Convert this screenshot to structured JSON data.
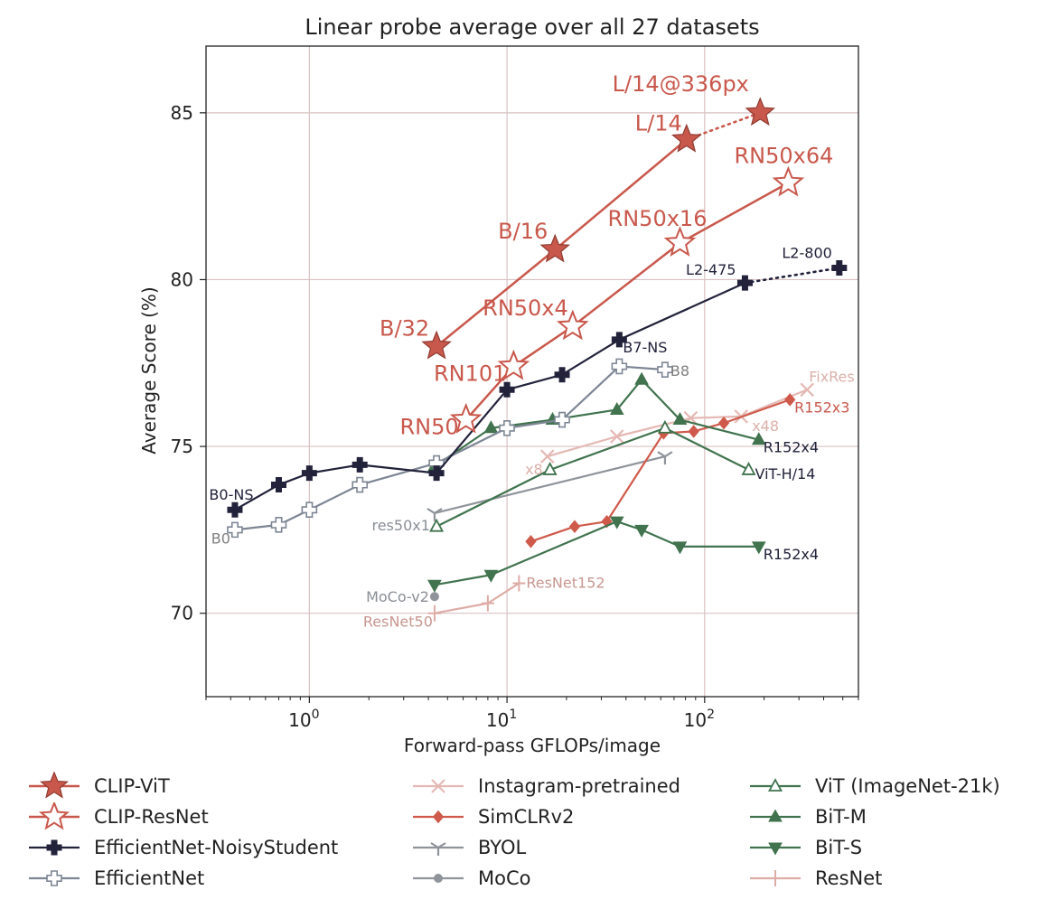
{
  "chart_data": {
    "type": "line",
    "title": "Linear probe average over all 27 datasets",
    "xlabel": "Forward-pass GFLOPs/image",
    "ylabel": "Average Score (%)",
    "xscale": "log",
    "xlim": [
      0.3,
      600
    ],
    "ylim": [
      67.5,
      87
    ],
    "xticks": [
      {
        "value": 1,
        "base": "10",
        "exp": "0"
      },
      {
        "value": 10,
        "base": "10",
        "exp": "1"
      },
      {
        "value": 100,
        "base": "10",
        "exp": "2"
      }
    ],
    "yticks": [
      70,
      75,
      80,
      85
    ],
    "grid": true,
    "legend_position": "below",
    "series": [
      {
        "name": "CLIP-ViT",
        "color": "#c9584c",
        "marker": "star-filled",
        "width": 2.5,
        "x": [
          4.4,
          17.5,
          81
        ],
        "y": [
          78.0,
          80.9,
          84.2
        ],
        "labels": [
          "B/32",
          "B/16",
          "L/14"
        ],
        "extension": {
          "x": [
            81,
            191
          ],
          "y": [
            84.2,
            85.0
          ],
          "label": "L/14@336px"
        }
      },
      {
        "name": "CLIP-ResNet",
        "color": "#c9584c",
        "marker": "star-open",
        "width": 2.5,
        "x": [
          6.2,
          10.8,
          21.5,
          75,
          265
        ],
        "y": [
          75.8,
          77.4,
          78.6,
          81.1,
          82.9
        ],
        "labels": [
          "RN50",
          "RN101",
          "RN50x4",
          "RN50x16",
          "RN50x64"
        ]
      },
      {
        "name": "EfficientNet-NoisyStudent",
        "color": "#22223b",
        "marker": "plus-filled",
        "width": 2.2,
        "x": [
          0.42,
          0.7,
          1.0,
          1.8,
          4.4,
          10.0,
          19.0,
          37.0,
          160
        ],
        "y": [
          73.1,
          73.85,
          74.2,
          74.45,
          74.2,
          76.7,
          77.15,
          78.2,
          79.9
        ],
        "labels": [
          "B0-NS",
          "",
          "",
          "",
          "",
          "",
          "",
          "B7-NS",
          "L2-475"
        ],
        "extension": {
          "x": [
            160,
            480
          ],
          "y": [
            79.9,
            80.35
          ],
          "label": "L2-800"
        }
      },
      {
        "name": "EfficientNet",
        "color": "#7d8694",
        "marker": "plus-open",
        "width": 2.2,
        "x": [
          0.42,
          0.7,
          1.0,
          1.8,
          4.4,
          10.0,
          19.0,
          37.0,
          63
        ],
        "y": [
          72.5,
          72.65,
          73.1,
          73.85,
          74.5,
          75.55,
          75.8,
          77.4,
          77.3
        ],
        "labels": [
          "B0",
          "",
          "",
          "",
          "",
          "",
          "",
          "",
          "B8"
        ]
      },
      {
        "name": "Instagram-pretrained",
        "color": "#e4b9b4",
        "marker": "x",
        "width": 2.2,
        "x": [
          16,
          36,
          85,
          153,
          330
        ],
        "y": [
          74.7,
          75.3,
          75.85,
          75.9,
          76.7
        ],
        "labels": [
          "x8",
          "",
          "",
          "x48",
          "FixRes"
        ]
      },
      {
        "name": "SimCLRv2",
        "color": "#cf5a4b",
        "marker": "diamond",
        "width": 2.2,
        "x": [
          13.2,
          22,
          32,
          62,
          88,
          125,
          270
        ],
        "y": [
          72.15,
          72.6,
          72.75,
          75.4,
          75.45,
          75.7,
          76.4
        ],
        "labels": [
          "",
          "",
          "",
          "",
          "",
          "",
          "R152x3"
        ]
      },
      {
        "name": "BYOL",
        "color": "#8f949b",
        "marker": "tri-y",
        "width": 2.2,
        "x": [
          4.3,
          63
        ],
        "y": [
          73.0,
          74.7
        ],
        "labels": [
          "res50x1",
          ""
        ]
      },
      {
        "name": "MoCo",
        "color": "#8f949b",
        "marker": "circle",
        "width": 2.2,
        "x": [
          4.3
        ],
        "y": [
          70.5
        ],
        "labels": [
          "MoCo-v2"
        ]
      },
      {
        "name": "ViT (ImageNet-21k)",
        "color": "#40734e",
        "marker": "triangle-open",
        "width": 2.2,
        "x": [
          4.4,
          16.5,
          63,
          167
        ],
        "y": [
          72.6,
          74.3,
          75.55,
          74.3
        ],
        "labels": [
          "",
          "",
          "",
          "ViT-H/14"
        ]
      },
      {
        "name": "BiT-M",
        "color": "#40734e",
        "marker": "triangle-up",
        "width": 2.2,
        "x": [
          4.3,
          8.3,
          17,
          36,
          48,
          75,
          188
        ],
        "y": [
          74.4,
          75.55,
          75.8,
          76.1,
          77.0,
          75.8,
          75.2
        ],
        "labels": [
          "",
          "",
          "",
          "",
          "",
          "",
          "R152x4"
        ]
      },
      {
        "name": "BiT-S",
        "color": "#40734e",
        "marker": "triangle-down",
        "width": 2.2,
        "x": [
          4.3,
          8.3,
          36,
          48,
          75,
          188
        ],
        "y": [
          70.85,
          71.15,
          72.75,
          72.5,
          72.0,
          72.0
        ],
        "labels": [
          "",
          "",
          "",
          "",
          "",
          "R152x4"
        ]
      },
      {
        "name": "ResNet",
        "color": "#deaca6",
        "marker": "vline",
        "width": 2.2,
        "x": [
          4.3,
          8.0,
          11.5
        ],
        "y": [
          70.0,
          70.3,
          70.9
        ],
        "labels": [
          "ResNet50",
          "",
          "ResNet152"
        ]
      }
    ]
  }
}
